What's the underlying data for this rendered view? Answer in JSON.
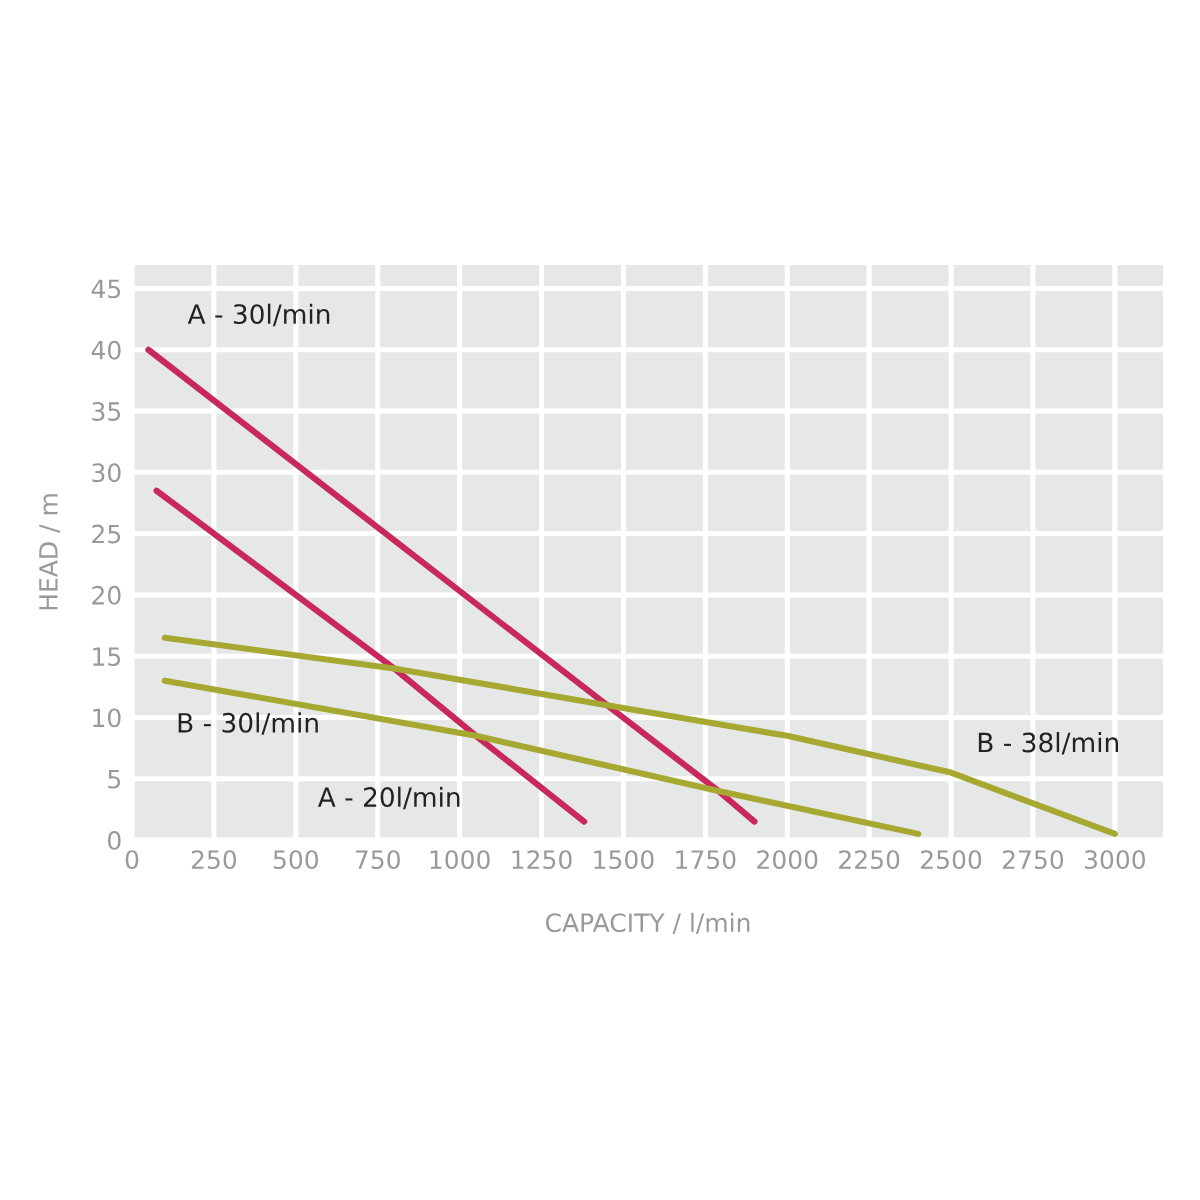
{
  "chart_data": {
    "type": "line",
    "xlabel": "CAPACITY / l/min",
    "ylabel": "HEAD / m",
    "series": [
      {
        "name": "A - 30l/min",
        "color": "#c8285a",
        "x": [
          50,
          1450,
          1790,
          1900
        ],
        "values": [
          40,
          11,
          4,
          1.5
        ]
      },
      {
        "name": "A - 20l/min",
        "color": "#c8285a",
        "x": [
          75,
          800,
          1050,
          1380
        ],
        "values": [
          28.5,
          14,
          8.5,
          1.5
        ]
      },
      {
        "name": "B - 30l/min",
        "color": "#a6a832",
        "x": [
          100,
          1050,
          1790,
          2400
        ],
        "values": [
          13,
          8.5,
          4,
          0.5
        ]
      },
      {
        "name": "B - 38l/min",
        "color": "#a6a832",
        "x": [
          100,
          800,
          1450,
          2000,
          2500,
          3000
        ],
        "values": [
          16.5,
          14,
          11,
          8.5,
          5.5,
          0.5
        ]
      }
    ],
    "xlim": [
      0,
      3150
    ],
    "ylim": [
      0,
      47
    ],
    "xticks": [
      0,
      250,
      500,
      750,
      1000,
      1250,
      1500,
      1750,
      2000,
      2250,
      2500,
      2750,
      3000
    ],
    "yticks": [
      0,
      5,
      10,
      15,
      20,
      25,
      30,
      35,
      40,
      45
    ],
    "grid": true,
    "legend": false,
    "marker": "none",
    "line_style": "solid"
  }
}
